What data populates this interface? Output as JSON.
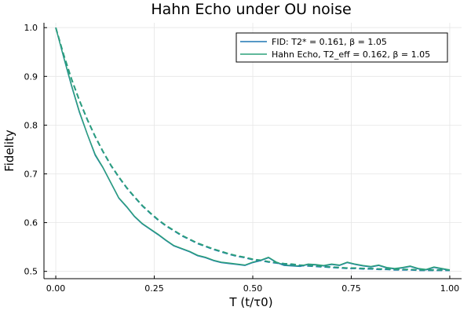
{
  "chart_data": {
    "type": "line",
    "title": "Hahn Echo under OU noise",
    "xlabel": "T (t/τ0)",
    "ylabel": "Fidelity",
    "xlim": [
      -0.03,
      1.03
    ],
    "ylim": [
      0.485,
      1.01
    ],
    "xticks": [
      0.0,
      0.25,
      0.5,
      0.75,
      1.0
    ],
    "xtick_labels": [
      "0.00",
      "0.25",
      "0.50",
      "0.75",
      "1.00"
    ],
    "yticks": [
      0.5,
      0.6,
      0.7,
      0.8,
      0.9,
      1.0
    ],
    "ytick_labels": [
      "0.5",
      "0.6",
      "0.7",
      "0.8",
      "0.9",
      "1.0"
    ],
    "grid": true,
    "legend_position": "top-right",
    "series": [
      {
        "name": "FID: T2* = 0.161, β = 1.05",
        "color": "#1f77b4",
        "style": "solid",
        "x": [
          0,
          0.02,
          0.04,
          0.06,
          0.08,
          0.1,
          0.12,
          0.14,
          0.16,
          0.18,
          0.2,
          0.22,
          0.24,
          0.26,
          0.28,
          0.3,
          0.32,
          0.34,
          0.36,
          0.38,
          0.4,
          0.42,
          0.44,
          0.46,
          0.48,
          0.5,
          0.52,
          0.54,
          0.56,
          0.58,
          0.6,
          0.62,
          0.64,
          0.66,
          0.68,
          0.7,
          0.72,
          0.74,
          0.76,
          0.78,
          0.8,
          0.82,
          0.84,
          0.86,
          0.88,
          0.9,
          0.92,
          0.94,
          0.96,
          0.98,
          1.0
        ],
        "y": [
          1.0,
          0.939,
          0.88,
          0.826,
          0.781,
          0.738,
          0.712,
          0.681,
          0.65,
          0.632,
          0.612,
          0.597,
          0.586,
          0.575,
          0.563,
          0.552,
          0.546,
          0.54,
          0.532,
          0.528,
          0.522,
          0.518,
          0.516,
          0.514,
          0.512,
          0.518,
          0.522,
          0.528,
          0.518,
          0.512,
          0.511,
          0.51,
          0.514,
          0.513,
          0.511,
          0.514,
          0.512,
          0.518,
          0.514,
          0.511,
          0.509,
          0.512,
          0.507,
          0.505,
          0.507,
          0.51,
          0.505,
          0.503,
          0.508,
          0.505,
          0.502
        ]
      },
      {
        "name": "Hahn Echo, T2_eff = 0.162, β = 1.05",
        "color": "#2ca07a",
        "style": "solid",
        "x": [
          0,
          0.02,
          0.04,
          0.06,
          0.08,
          0.1,
          0.12,
          0.14,
          0.16,
          0.18,
          0.2,
          0.22,
          0.24,
          0.26,
          0.28,
          0.3,
          0.32,
          0.34,
          0.36,
          0.38,
          0.4,
          0.42,
          0.44,
          0.46,
          0.48,
          0.5,
          0.52,
          0.54,
          0.56,
          0.58,
          0.6,
          0.62,
          0.64,
          0.66,
          0.68,
          0.7,
          0.72,
          0.74,
          0.76,
          0.78,
          0.8,
          0.82,
          0.84,
          0.86,
          0.88,
          0.9,
          0.92,
          0.94,
          0.96,
          0.98,
          1.0
        ],
        "y": [
          1.0,
          0.94,
          0.882,
          0.828,
          0.782,
          0.74,
          0.713,
          0.682,
          0.651,
          0.633,
          0.613,
          0.598,
          0.587,
          0.576,
          0.564,
          0.553,
          0.547,
          0.541,
          0.533,
          0.529,
          0.523,
          0.519,
          0.517,
          0.515,
          0.513,
          0.519,
          0.523,
          0.529,
          0.519,
          0.513,
          0.512,
          0.511,
          0.515,
          0.514,
          0.512,
          0.515,
          0.513,
          0.519,
          0.515,
          0.512,
          0.51,
          0.513,
          0.508,
          0.506,
          0.508,
          0.511,
          0.506,
          0.504,
          0.509,
          0.506,
          0.503
        ]
      },
      {
        "color": "#1f77b4",
        "style": "dashed",
        "x": [
          0,
          0.02,
          0.04,
          0.06,
          0.08,
          0.1,
          0.12,
          0.14,
          0.16,
          0.18,
          0.2,
          0.22,
          0.24,
          0.26,
          0.28,
          0.3,
          0.32,
          0.34,
          0.36,
          0.38,
          0.4,
          0.42,
          0.44,
          0.46,
          0.48,
          0.5,
          0.52,
          0.54,
          0.56,
          0.58,
          0.6,
          0.62,
          0.64,
          0.66,
          0.68,
          0.7,
          0.72,
          0.74,
          0.76,
          0.78,
          0.8,
          0.82,
          0.84,
          0.86,
          0.88,
          0.9,
          0.92,
          0.94,
          0.96,
          0.98,
          1.0
        ],
        "y": [
          1.0,
          0.944,
          0.894,
          0.85,
          0.811,
          0.776,
          0.745,
          0.717,
          0.693,
          0.671,
          0.652,
          0.634,
          0.619,
          0.605,
          0.593,
          0.583,
          0.573,
          0.565,
          0.557,
          0.551,
          0.545,
          0.54,
          0.535,
          0.531,
          0.528,
          0.524,
          0.522,
          0.519,
          0.517,
          0.515,
          0.514,
          0.512,
          0.511,
          0.51,
          0.509,
          0.508,
          0.507,
          0.506,
          0.506,
          0.505,
          0.505,
          0.504,
          0.504,
          0.503,
          0.503,
          0.503,
          0.502,
          0.502,
          0.502,
          0.502,
          0.502
        ]
      },
      {
        "color": "#2ca07a",
        "style": "dashed",
        "x": [
          0,
          0.02,
          0.04,
          0.06,
          0.08,
          0.1,
          0.12,
          0.14,
          0.16,
          0.18,
          0.2,
          0.22,
          0.24,
          0.26,
          0.28,
          0.3,
          0.32,
          0.34,
          0.36,
          0.38,
          0.4,
          0.42,
          0.44,
          0.46,
          0.48,
          0.5,
          0.52,
          0.54,
          0.56,
          0.58,
          0.6,
          0.62,
          0.64,
          0.66,
          0.68,
          0.7,
          0.72,
          0.74,
          0.76,
          0.78,
          0.8,
          0.82,
          0.84,
          0.86,
          0.88,
          0.9,
          0.92,
          0.94,
          0.96,
          0.98,
          1.0
        ],
        "y": [
          1.0,
          0.945,
          0.895,
          0.851,
          0.812,
          0.777,
          0.746,
          0.718,
          0.694,
          0.672,
          0.653,
          0.635,
          0.62,
          0.606,
          0.594,
          0.584,
          0.574,
          0.566,
          0.558,
          0.552,
          0.546,
          0.541,
          0.536,
          0.532,
          0.529,
          0.525,
          0.523,
          0.52,
          0.518,
          0.516,
          0.515,
          0.513,
          0.512,
          0.511,
          0.51,
          0.509,
          0.508,
          0.507,
          0.507,
          0.506,
          0.506,
          0.505,
          0.505,
          0.504,
          0.504,
          0.504,
          0.503,
          0.503,
          0.503,
          0.503,
          0.503
        ]
      }
    ]
  }
}
